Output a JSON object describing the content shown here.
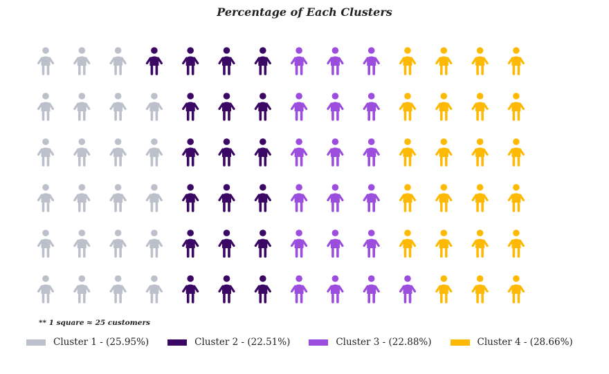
{
  "chart_data": {
    "type": "waffle",
    "title": "Percentage of Each Clusters",
    "note": "** 1 square ≈ 25 customers",
    "unit_icon": "person-icon",
    "series": [
      {
        "name": "Cluster 1 - (25.95%)",
        "color": "#bbc0ca",
        "icons": 23
      },
      {
        "name": "Cluster 2 - (22.51%)",
        "color": "#3b0764",
        "icons": 19
      },
      {
        "name": "Cluster 3 - (22.88%)",
        "color": "#9b4ddd",
        "icons": 19
      },
      {
        "name": "Cluster 4 - (28.66%)",
        "color": "#fdb904",
        "icons": 23
      }
    ],
    "rows": 6,
    "columns": 15,
    "legend_position": "bottom"
  }
}
